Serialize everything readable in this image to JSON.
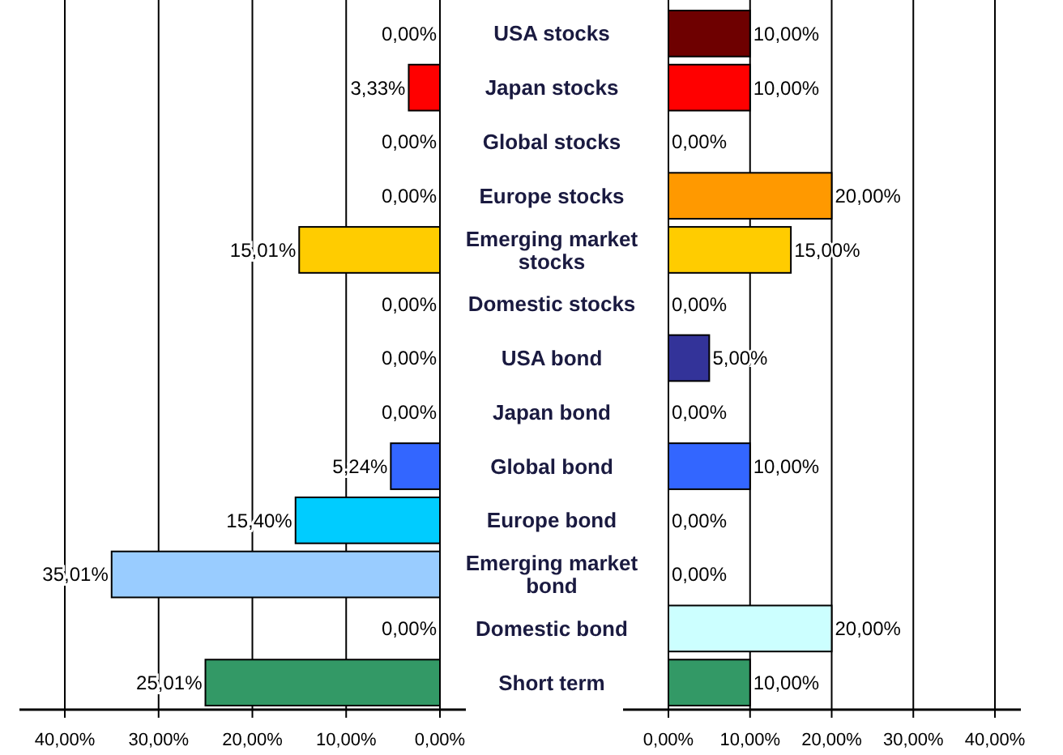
{
  "chart_data": [
    {
      "type": "bar",
      "orientation": "horizontal",
      "values": [
        0,
        3.33,
        0,
        0,
        15.01,
        0,
        0,
        0,
        5.24,
        15.4,
        35.01,
        0,
        25.01
      ],
      "value_labels": [
        "0,00%",
        "3,33%",
        "0,00%",
        "0,00%",
        "15,01%",
        "0,00%",
        "0,00%",
        "0,00%",
        "5,24%",
        "15,40%",
        "35,01%",
        "0,00%",
        "25,01%"
      ],
      "colors": [
        "#6e0000",
        "#ff0000",
        "#ffffff",
        "#ff9900",
        "#ffcc00",
        "#ffffff",
        "#333399",
        "#ffffff",
        "#3366ff",
        "#00ccff",
        "#99ccff",
        "#ccffff",
        "#339966"
      ],
      "xlim": [
        40,
        0
      ],
      "xticks": [
        {
          "value": 40,
          "label": "40,00%"
        },
        {
          "value": 30,
          "label": "30,00%"
        },
        {
          "value": 20,
          "label": "20,00%"
        },
        {
          "value": 10,
          "label": "10,00%"
        },
        {
          "value": 0,
          "label": "0,00%"
        }
      ],
      "grid": "x",
      "tick_labels": "x"
    },
    {
      "type": "bar",
      "orientation": "horizontal",
      "categories": [
        "USA stocks",
        "Japan stocks",
        "Global stocks",
        "Europe stocks",
        "Emerging market stocks",
        "Domestic stocks",
        "USA bond",
        "Japan bond",
        "Global bond",
        "Europe bond",
        "Emerging market bond",
        "Domestic bond",
        "Short term"
      ],
      "values": [
        10,
        10,
        0,
        20,
        15,
        0,
        5,
        0,
        10,
        0,
        0,
        20,
        10
      ],
      "value_labels": [
        "10,00%",
        "10,00%",
        "0,00%",
        "20,00%",
        "15,00%",
        "0,00%",
        "5,00%",
        "0,00%",
        "10,00%",
        "0,00%",
        "0,00%",
        "20,00%",
        "10,00%"
      ],
      "colors": [
        "#6e0000",
        "#ff0000",
        "#ffffff",
        "#ff9900",
        "#ffcc00",
        "#ffffff",
        "#333399",
        "#ffffff",
        "#3366ff",
        "#00ccff",
        "#99ccff",
        "#ccffff",
        "#339966"
      ],
      "xlim": [
        0,
        40
      ],
      "xticks": [
        {
          "value": 0,
          "label": "0,00%"
        },
        {
          "value": 10,
          "label": "10,00%"
        },
        {
          "value": 20,
          "label": "20,00%"
        },
        {
          "value": 30,
          "label": "30,00%"
        },
        {
          "value": 40,
          "label": "40,00%"
        }
      ],
      "grid": "x"
    }
  ]
}
